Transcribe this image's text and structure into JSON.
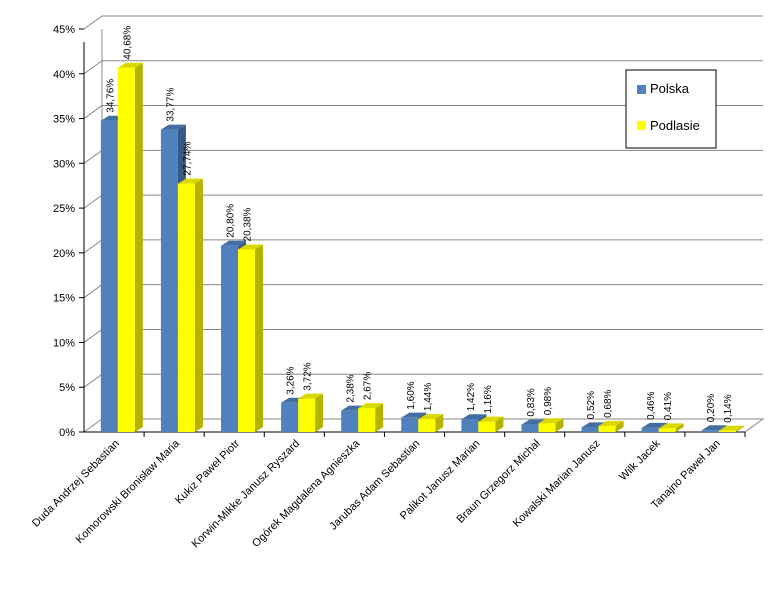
{
  "chart_data": {
    "type": "bar",
    "categories": [
      "Duda Andrzej Sebastian",
      "Komorowski Bronisław Maria",
      "Kukiz Paweł Piotr",
      "Korwin-Mikke Janusz Ryszard",
      "Ogórek Magdalena Agnieszka",
      "Jarubas Adam Sebastian",
      "Palikot Janusz Marian",
      "Braun Grzegorz Michał",
      "Kowalski Marian Janusz",
      "Wilk Jacek",
      "Tanajno Paweł Jan"
    ],
    "series": [
      {
        "name": "Polska",
        "color": "#4F81BD",
        "values": [
          34.76,
          33.77,
          20.8,
          3.26,
          2.38,
          1.6,
          1.42,
          0.83,
          0.52,
          0.46,
          0.2
        ],
        "labels": [
          "34,76%",
          "33,77%",
          "20,80%",
          "3,26%",
          "2,38%",
          "1,60%",
          "1,42%",
          "0,83%",
          "0,52%",
          "0,46%",
          "0,20%"
        ]
      },
      {
        "name": "Podlasie",
        "color": "#FFFF00",
        "values": [
          40.68,
          27.74,
          20.38,
          3.72,
          2.67,
          1.44,
          1.16,
          0.98,
          0.68,
          0.41,
          0.14
        ],
        "labels": [
          "40,68%",
          "27,74%",
          "20,38%",
          "3,72%",
          "2,67%",
          "1,44%",
          "1,16%",
          "0,98%",
          "0,68%",
          "0,41%",
          "0,14%"
        ]
      }
    ],
    "ylim": [
      0,
      45
    ],
    "yticks": [
      "0%",
      "5%",
      "10%",
      "15%",
      "20%",
      "25%",
      "30%",
      "35%",
      "40%",
      "45%"
    ],
    "grid": true,
    "legend": "top-right",
    "three_d": true
  }
}
